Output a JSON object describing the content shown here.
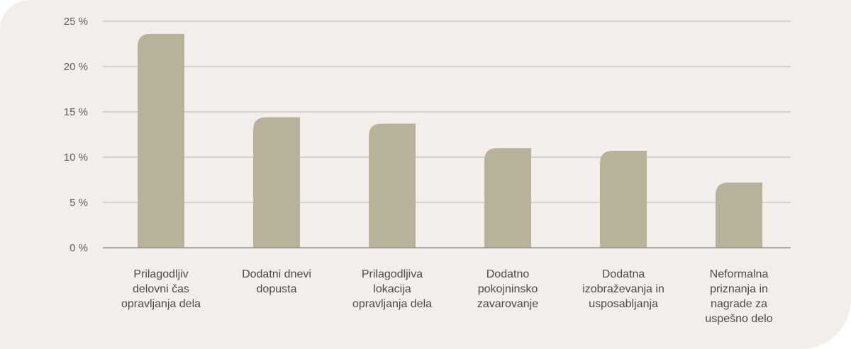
{
  "colors": {
    "background": "#f3eeea",
    "bar": "#b9b29b",
    "grid": "#bdb6b0",
    "axis": "#9a948e"
  },
  "chart_data": {
    "type": "bar",
    "categories": [
      [
        "Prilagodljiv",
        "delovni čas",
        "opravljanja dela"
      ],
      [
        "Dodatni dnevi",
        "dopusta"
      ],
      [
        "Prilagodljiva",
        "lokacija",
        "opravljanja dela"
      ],
      [
        "Dodatno",
        "pokojninsko",
        "zavarovanje"
      ],
      [
        "Dodatna",
        "izobraževanja in",
        "usposabljanja"
      ],
      [
        "Neformalna",
        "priznanja in",
        "nagrade za",
        "uspešno delo"
      ]
    ],
    "values": [
      23.6,
      14.4,
      13.7,
      11.0,
      10.7,
      7.2
    ],
    "ylim": [
      0,
      25
    ],
    "yticks": [
      0,
      5,
      10,
      15,
      20,
      25
    ],
    "ytick_labels": [
      "0 %",
      "5 %",
      "10 %",
      "15 %",
      "20 %",
      "25 %"
    ],
    "grid": true,
    "title": "",
    "xlabel": "",
    "ylabel": ""
  }
}
